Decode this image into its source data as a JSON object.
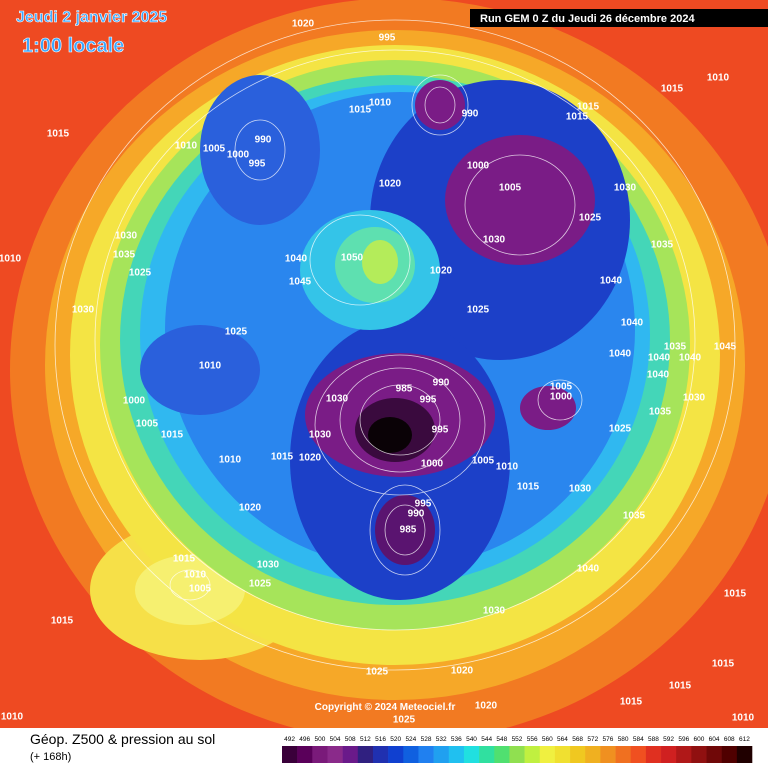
{
  "header": {
    "date": "Jeudi 2 janvier 2025",
    "time": "1:00 locale",
    "run": "Run GEM 0 Z du Jeudi 26 décembre 2024"
  },
  "map": {
    "isobar_labels": [
      1020,
      995,
      1010,
      1015,
      1015,
      1010,
      1005,
      1000,
      990,
      995,
      1015,
      1010,
      1015,
      1015,
      990,
      1000,
      1005,
      1020,
      1030,
      1025,
      1030,
      1035,
      1030,
      1035,
      1025,
      1010,
      1040,
      1045,
      1050,
      1020,
      1040,
      1030,
      1025,
      1040,
      1025,
      1035,
      1045,
      1040,
      1040,
      1040,
      1010,
      1040,
      1005,
      1000,
      985,
      990,
      995,
      1030,
      1000,
      1030,
      1035,
      995,
      1025,
      1005,
      1015,
      1030,
      1000,
      1005,
      1010,
      1015,
      1020,
      1010,
      1015,
      1030,
      995,
      990,
      985,
      1020,
      1035,
      1015,
      1030,
      1010,
      1005,
      1025,
      1040,
      1015,
      1015,
      1030,
      1025,
      1020,
      1015,
      1015,
      1015,
      1020,
      1010,
      1025,
      1010
    ],
    "copyright": "Copyright © 2024 Meteociel.fr"
  },
  "footer": {
    "title": "Géop. Z500 & pression au sol",
    "lead": "(+ 168h)",
    "scale": [
      492,
      496,
      500,
      504,
      508,
      512,
      516,
      520,
      524,
      528,
      532,
      536,
      540,
      544,
      548,
      552,
      556,
      560,
      564,
      568,
      572,
      576,
      580,
      584,
      588,
      592,
      596,
      600,
      604,
      608,
      612
    ]
  }
}
